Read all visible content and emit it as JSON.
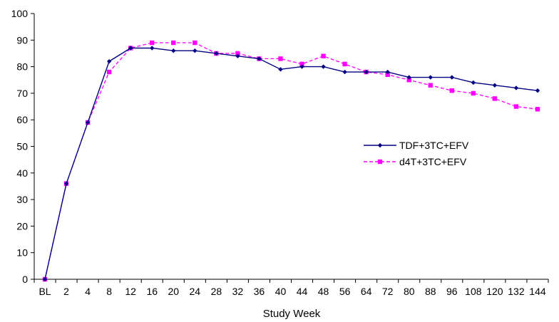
{
  "chart_data": {
    "type": "line",
    "title": "",
    "xlabel": "Study Week",
    "ylabel": "",
    "categories": [
      "BL",
      "2",
      "4",
      "8",
      "12",
      "16",
      "20",
      "24",
      "28",
      "32",
      "36",
      "40",
      "44",
      "48",
      "56",
      "64",
      "72",
      "80",
      "88",
      "96",
      "108",
      "120",
      "132",
      "144"
    ],
    "ylim": [
      0,
      100
    ],
    "yticks": [
      0,
      10,
      20,
      30,
      40,
      50,
      60,
      70,
      80,
      90,
      100
    ],
    "grid": false,
    "legend_position": "right",
    "series": [
      {
        "name": "TDF+3TC+EFV",
        "color": "#000080",
        "marker": "diamond",
        "dash": "solid",
        "values": [
          0,
          36,
          59,
          82,
          87,
          87,
          86,
          86,
          85,
          84,
          83,
          79,
          80,
          80,
          78,
          78,
          78,
          76,
          76,
          76,
          74,
          73,
          72,
          71
        ]
      },
      {
        "name": "d4T+3TC+EFV",
        "color": "#ff00ff",
        "marker": "square",
        "dash": "dashed",
        "values": [
          0,
          36,
          59,
          78,
          87,
          89,
          89,
          89,
          85,
          85,
          83,
          83,
          81,
          84,
          81,
          78,
          77,
          75,
          73,
          71,
          70,
          68,
          65,
          64
        ]
      }
    ]
  }
}
